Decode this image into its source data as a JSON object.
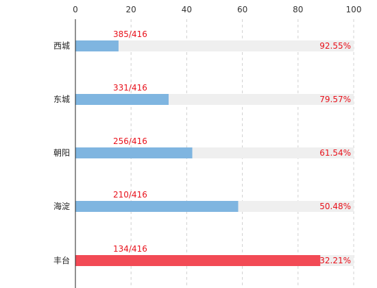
{
  "chart_data": {
    "type": "bar",
    "orientation": "horizontal",
    "categories": [
      "西城",
      "东城",
      "朝阳",
      "海淀",
      "丰台"
    ],
    "bar_values": [
      15.5,
      33.5,
      42,
      58.5,
      88
    ],
    "counts": [
      "385/416",
      "331/416",
      "256/416",
      "210/416",
      "134/416"
    ],
    "percents": [
      "92.55%",
      "79.57%",
      "61.54%",
      "50.48%",
      "32.21%"
    ],
    "xlim": [
      0,
      100
    ],
    "xticks": [
      "0",
      "20",
      "40",
      "60",
      "80",
      "100"
    ],
    "grid": "vertical dashed",
    "colors": {
      "bar": "#7fb5e0",
      "highlight_bar": "#f24a55",
      "track": "#efefef",
      "label": "#e8101a"
    }
  }
}
